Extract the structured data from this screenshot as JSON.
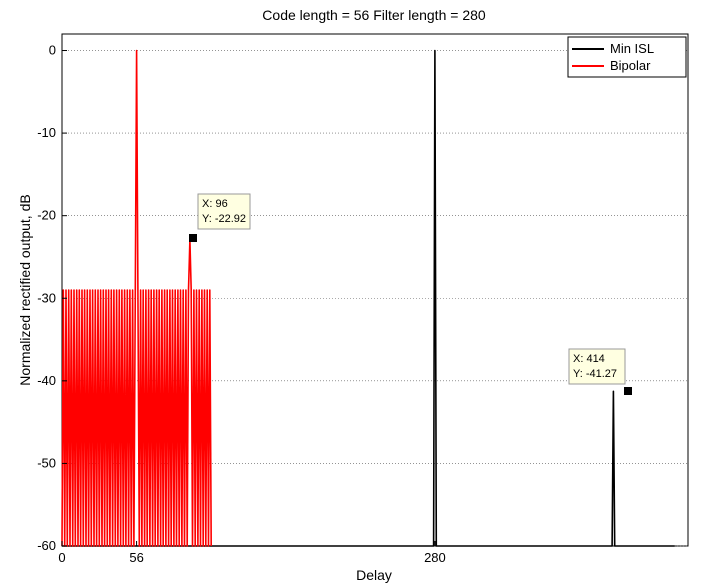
{
  "chart_data": {
    "type": "line",
    "title": "Code length = 56   Filter length = 280",
    "xlabel": "Delay",
    "ylabel": "Normalized rectified output, dB",
    "xlim": [
      0,
      470
    ],
    "ylim": [
      -60,
      2
    ],
    "xticks": [
      0,
      56,
      280
    ],
    "yticks": [
      0,
      -10,
      -20,
      -30,
      -40,
      -50,
      -60
    ],
    "grid": true,
    "legend_position": "top-right",
    "series": [
      {
        "name": "Min ISL",
        "color": "#000000",
        "x": [
          0,
          3,
          6,
          9,
          12,
          15,
          18,
          21,
          24,
          27,
          30,
          33,
          36,
          39,
          42,
          45,
          48,
          51,
          54,
          57,
          60,
          63,
          66,
          69,
          72,
          75,
          78,
          81,
          84,
          87,
          90,
          93,
          96,
          99,
          102,
          105,
          108,
          111,
          114,
          117,
          120,
          123,
          126,
          129,
          132,
          135,
          138,
          141,
          144,
          147,
          150,
          153,
          156,
          159,
          162,
          165,
          168,
          171,
          174,
          177,
          180,
          183,
          186,
          189,
          192,
          195,
          198,
          201,
          204,
          207,
          210,
          213,
          216,
          219,
          222,
          225,
          228,
          231,
          234,
          237,
          240,
          243,
          246,
          249,
          252,
          255,
          258,
          261,
          264,
          267,
          270,
          273,
          276,
          279,
          280,
          281,
          284,
          287,
          290,
          293,
          296,
          299,
          302,
          305,
          308,
          311,
          314,
          317,
          320,
          323,
          326,
          329,
          332,
          335,
          338,
          341,
          344,
          347,
          350,
          353,
          356,
          359,
          362,
          365,
          368,
          371,
          374,
          377,
          380,
          383,
          386,
          389,
          392,
          395,
          398,
          401,
          404,
          407,
          410,
          413,
          414,
          415,
          418,
          421,
          424,
          427,
          430,
          433,
          436,
          439,
          442,
          445,
          448,
          451,
          454,
          457,
          460
        ],
        "y": [
          -60,
          -60,
          -60,
          -60,
          -60,
          -60,
          -60,
          -60,
          -60,
          -60,
          -60,
          -60,
          -60,
          -60,
          -60,
          -60,
          -60,
          -60,
          -60,
          -60,
          -60,
          -60,
          -60,
          -60,
          -60,
          -60,
          -60,
          -60,
          -60,
          -60,
          -60,
          -60,
          -60,
          -60,
          -60,
          -60,
          -60,
          -60,
          -60,
          -60,
          -60,
          -60,
          -60,
          -60,
          -60,
          -60,
          -60,
          -60,
          -60,
          -60,
          -60,
          -60,
          -60,
          -60,
          -60,
          -60,
          -60,
          -60,
          -60,
          -60,
          -60,
          -60,
          -60,
          -60,
          -60,
          -60,
          -60,
          -60,
          -60,
          -60,
          -60,
          -60,
          -60,
          -60,
          -60,
          -60,
          -60,
          -60,
          -60,
          -60,
          -60,
          -60,
          -60,
          -60,
          -60,
          -60,
          -60,
          -60,
          -60,
          -60,
          -60,
          -60,
          -60,
          -60,
          0,
          -60,
          -60,
          -60,
          -60,
          -60,
          -60,
          -60,
          -60,
          -60,
          -60,
          -60,
          -60,
          -60,
          -60,
          -60,
          -60,
          -60,
          -60,
          -60,
          -60,
          -60,
          -60,
          -60,
          -60,
          -60,
          -60,
          -60,
          -60,
          -60,
          -60,
          -60,
          -60,
          -60,
          -60,
          -60,
          -60,
          -60,
          -60,
          -60,
          -60,
          -60,
          -60,
          -60,
          -60,
          -60,
          -41.27,
          -60,
          -60,
          -60,
          -60,
          -60,
          -60,
          -60,
          -60,
          -60,
          -60,
          -60,
          -60,
          -60,
          -60,
          -60,
          -60
        ]
      },
      {
        "name": "Bipolar",
        "color": "#ff0000",
        "x": [
          0,
          1,
          2,
          3,
          4,
          5,
          6,
          7,
          8,
          9,
          10,
          11,
          12,
          13,
          14,
          15,
          16,
          17,
          18,
          19,
          20,
          21,
          22,
          23,
          24,
          25,
          26,
          27,
          28,
          29,
          30,
          31,
          32,
          33,
          34,
          35,
          36,
          37,
          38,
          39,
          40,
          41,
          42,
          43,
          44,
          45,
          46,
          47,
          48,
          49,
          50,
          51,
          52,
          53,
          54,
          55,
          56,
          57,
          58,
          59,
          60,
          61,
          62,
          63,
          64,
          65,
          66,
          67,
          68,
          69,
          70,
          71,
          72,
          73,
          74,
          75,
          76,
          77,
          78,
          79,
          80,
          81,
          82,
          83,
          84,
          85,
          86,
          87,
          88,
          89,
          90,
          91,
          92,
          93,
          94,
          95,
          96,
          97,
          98,
          99,
          100,
          101,
          102,
          103,
          104,
          105,
          106,
          107,
          108,
          109,
          110,
          111,
          112
        ],
        "y": [
          -60,
          -29,
          -60,
          -29,
          -60,
          -29,
          -60,
          -29,
          -60,
          -29,
          -60,
          -29,
          -60,
          -29,
          -60,
          -29,
          -60,
          -29,
          -60,
          -29,
          -60,
          -29,
          -60,
          -29,
          -60,
          -29,
          -60,
          -29,
          -60,
          -29,
          -60,
          -29,
          -60,
          -29,
          -60,
          -29,
          -60,
          -29,
          -60,
          -29,
          -60,
          -29,
          -60,
          -29,
          -60,
          -29,
          -60,
          -29,
          -60,
          -29,
          -60,
          -29,
          -60,
          -29,
          -60,
          -29,
          0,
          -29,
          -60,
          -29,
          -60,
          -29,
          -60,
          -29,
          -60,
          -29,
          -60,
          -29,
          -60,
          -29,
          -60,
          -29,
          -60,
          -29,
          -60,
          -29,
          -60,
          -29,
          -60,
          -29,
          -60,
          -29,
          -60,
          -29,
          -60,
          -29,
          -60,
          -29,
          -60,
          -29,
          -60,
          -29,
          -60,
          -29,
          -60,
          -29,
          -22.92,
          -29,
          -60,
          -29,
          -60,
          -29,
          -60,
          -29,
          -60,
          -29,
          -60,
          -29,
          -60,
          -29,
          -60,
          -29,
          -60
        ]
      }
    ],
    "annotations": [
      {
        "label_x": "X: 96",
        "label_y": "Y: -22.92",
        "x": 96,
        "y": -22.92
      },
      {
        "label_x": "X: 414",
        "label_y": "Y: -41.27",
        "x": 414,
        "y": -41.27
      }
    ]
  }
}
